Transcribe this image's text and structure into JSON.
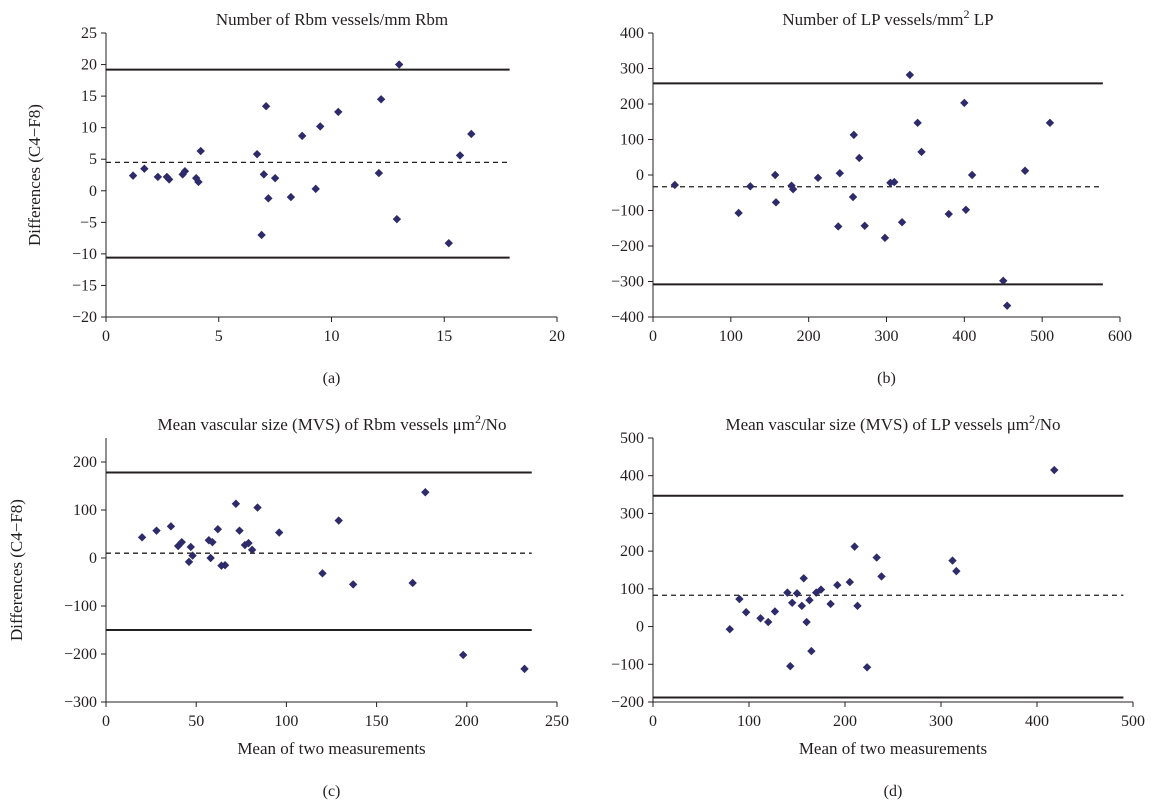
{
  "chart_data": [
    {
      "type": "scatter",
      "panel_label": "(a)",
      "title": "Number of Rbm vessels/mm Rbm",
      "xlabel": "",
      "ylabel": "Differences (C4−F8)",
      "xlim": [
        0,
        20
      ],
      "ylim": [
        -20,
        25
      ],
      "x_ticks": [
        "0",
        "5",
        "10",
        "15",
        "20"
      ],
      "y_ticks": [
        "−20",
        "−15",
        "−10",
        "−5",
        "0",
        "5",
        "10",
        "15",
        "20",
        "25"
      ],
      "mean_line": 4.5,
      "upper_limit": 19.2,
      "lower_limit": -10.6,
      "lines_x_extent": [
        0,
        17.9
      ],
      "marker_color": "#2e2b6b",
      "points": [
        [
          1.2,
          2.4
        ],
        [
          1.7,
          3.5
        ],
        [
          2.3,
          2.2
        ],
        [
          2.7,
          2.2
        ],
        [
          2.8,
          1.8
        ],
        [
          3.4,
          2.6
        ],
        [
          3.5,
          3.1
        ],
        [
          4.0,
          2.0
        ],
        [
          4.1,
          1.4
        ],
        [
          4.2,
          6.3
        ],
        [
          6.7,
          5.8
        ],
        [
          6.9,
          -7.0
        ],
        [
          7.0,
          2.6
        ],
        [
          7.1,
          13.4
        ],
        [
          7.2,
          -1.2
        ],
        [
          7.5,
          2.0
        ],
        [
          8.2,
          -1.0
        ],
        [
          8.7,
          8.7
        ],
        [
          9.3,
          0.3
        ],
        [
          9.5,
          10.2
        ],
        [
          10.3,
          12.5
        ],
        [
          12.1,
          2.8
        ],
        [
          12.2,
          14.5
        ],
        [
          12.9,
          -4.5
        ],
        [
          13.0,
          20.0
        ],
        [
          15.2,
          -8.3
        ],
        [
          15.7,
          5.6
        ],
        [
          16.2,
          9.0
        ]
      ]
    },
    {
      "type": "scatter",
      "panel_label": "(b)",
      "title": "Number of LP vessels/mm",
      "title_superscript": "2",
      "title_suffix": "LP",
      "xlabel": "",
      "ylabel": "",
      "xlim": [
        0,
        600
      ],
      "ylim": [
        -400,
        400
      ],
      "x_ticks": [
        "0",
        "100",
        "200",
        "300",
        "400",
        "500",
        "600"
      ],
      "y_ticks": [
        "−400",
        "−300",
        "−200",
        "−100",
        "0",
        "100",
        "200",
        "300",
        "400"
      ],
      "mean_line": -33,
      "upper_limit": 258,
      "lower_limit": -308,
      "lines_x_extent": [
        0,
        578
      ],
      "marker_color": "#2e2b6b",
      "points": [
        [
          28,
          -28
        ],
        [
          110,
          -107
        ],
        [
          125,
          -32
        ],
        [
          157,
          0
        ],
        [
          158,
          -77
        ],
        [
          178,
          -30
        ],
        [
          180,
          -40
        ],
        [
          212,
          -8
        ],
        [
          238,
          -145
        ],
        [
          240,
          5
        ],
        [
          257,
          -62
        ],
        [
          258,
          113
        ],
        [
          265,
          48
        ],
        [
          272,
          -143
        ],
        [
          298,
          -177
        ],
        [
          305,
          -22
        ],
        [
          310,
          -20
        ],
        [
          320,
          -133
        ],
        [
          330,
          282
        ],
        [
          340,
          147
        ],
        [
          345,
          65
        ],
        [
          380,
          -110
        ],
        [
          400,
          203
        ],
        [
          402,
          -98
        ],
        [
          410,
          0
        ],
        [
          450,
          -298
        ],
        [
          455,
          -368
        ],
        [
          478,
          12
        ],
        [
          510,
          147
        ]
      ]
    },
    {
      "type": "scatter",
      "panel_label": "(c)",
      "title": "Mean vascular size (MVS) of Rbm vessels μm",
      "title_superscript": "2",
      "title_suffix": "/No",
      "xlabel": "Mean of two measurements",
      "ylabel": "Differences (C4−F8)",
      "xlim": [
        0,
        250
      ],
      "ylim": [
        -300,
        250
      ],
      "x_ticks": [
        "0",
        "50",
        "100",
        "150",
        "200",
        "250"
      ],
      "y_ticks": [
        "−300",
        "−200",
        "−100",
        "0",
        "100",
        "200"
      ],
      "y_tick_values": [
        -300,
        -200,
        -100,
        0,
        100,
        200
      ],
      "mean_line": 10,
      "upper_limit": 178,
      "lower_limit": -150,
      "lines_x_extent": [
        0,
        236
      ],
      "marker_color": "#2e2b6b",
      "points": [
        [
          20,
          43
        ],
        [
          28,
          57
        ],
        [
          36,
          66
        ],
        [
          40,
          25
        ],
        [
          42,
          33
        ],
        [
          46,
          -8
        ],
        [
          47,
          23
        ],
        [
          48,
          5
        ],
        [
          57,
          37
        ],
        [
          58,
          0
        ],
        [
          59,
          33
        ],
        [
          62,
          60
        ],
        [
          64,
          -16
        ],
        [
          66,
          -15
        ],
        [
          72,
          113
        ],
        [
          74,
          57
        ],
        [
          77,
          27
        ],
        [
          79,
          31
        ],
        [
          81,
          17
        ],
        [
          84,
          105
        ],
        [
          96,
          53
        ],
        [
          120,
          -32
        ],
        [
          129,
          78
        ],
        [
          137,
          -55
        ],
        [
          170,
          -52
        ],
        [
          177,
          137
        ],
        [
          198,
          -202
        ],
        [
          232,
          -231
        ]
      ]
    },
    {
      "type": "scatter",
      "panel_label": "(d)",
      "title": "Mean vascular size (MVS) of LP vessels μm",
      "title_superscript": "2",
      "title_suffix": "/No",
      "xlabel": "Mean of two measurements",
      "ylabel": "",
      "xlim": [
        0,
        500
      ],
      "ylim": [
        -200,
        500
      ],
      "x_ticks": [
        "0",
        "100",
        "200",
        "300",
        "400",
        "500"
      ],
      "y_ticks": [
        "−200",
        "−100",
        "0",
        "100",
        "200",
        "300",
        "400",
        "500"
      ],
      "mean_line": 83,
      "upper_limit": 347,
      "lower_limit": -188,
      "lines_x_extent": [
        0,
        490
      ],
      "marker_color": "#2e2b6b",
      "points": [
        [
          80,
          -7
        ],
        [
          90,
          73
        ],
        [
          97,
          38
        ],
        [
          112,
          22
        ],
        [
          120,
          12
        ],
        [
          127,
          40
        ],
        [
          140,
          90
        ],
        [
          143,
          -105
        ],
        [
          145,
          63
        ],
        [
          150,
          88
        ],
        [
          155,
          55
        ],
        [
          157,
          128
        ],
        [
          160,
          12
        ],
        [
          163,
          70
        ],
        [
          165,
          -65
        ],
        [
          170,
          90
        ],
        [
          175,
          98
        ],
        [
          185,
          60
        ],
        [
          192,
          110
        ],
        [
          205,
          118
        ],
        [
          210,
          212
        ],
        [
          213,
          55
        ],
        [
          223,
          -108
        ],
        [
          233,
          183
        ],
        [
          238,
          133
        ],
        [
          312,
          175
        ],
        [
          316,
          147
        ],
        [
          418,
          415
        ]
      ]
    }
  ]
}
